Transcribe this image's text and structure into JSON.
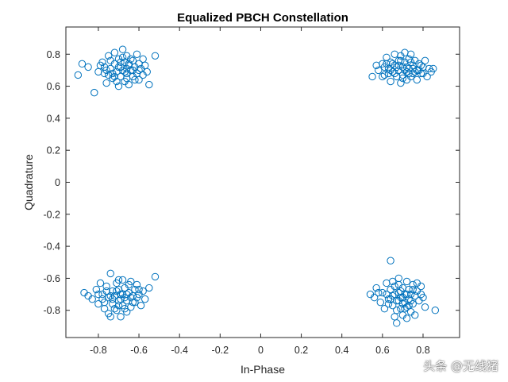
{
  "chart_data": {
    "type": "scatter",
    "title": "Equalized PBCH Constellation",
    "xlabel": "In-Phase",
    "ylabel": "Quadrature",
    "xlim": [
      -0.96,
      0.98
    ],
    "ylim": [
      -0.97,
      0.97
    ],
    "xticks": [
      -0.8,
      -0.6,
      -0.4,
      -0.2,
      0,
      0.2,
      0.4,
      0.6,
      0.8
    ],
    "xtick_labels": [
      "-0.8",
      "-0.6",
      "-0.4",
      "-0.2",
      "0",
      "0.2",
      "0.4",
      "0.6",
      "0.8"
    ],
    "yticks": [
      -0.8,
      -0.6,
      -0.4,
      -0.2,
      0,
      0.2,
      0.4,
      0.6,
      0.8
    ],
    "ytick_labels": [
      "-0.8",
      "-0.6",
      "-0.4",
      "-0.2",
      "0",
      "0.2",
      "0.4",
      "0.6",
      "0.8"
    ],
    "grid": false,
    "marker": "open-circle",
    "marker_color": "#0072BD",
    "series": [
      {
        "points": [
          [
            -0.88,
            0.74
          ],
          [
            -0.9,
            0.67
          ],
          [
            -0.85,
            0.72
          ],
          [
            -0.82,
            0.56
          ],
          [
            -0.8,
            0.69
          ],
          [
            -0.78,
            0.75
          ],
          [
            -0.77,
            0.68
          ],
          [
            -0.76,
            0.62
          ],
          [
            -0.75,
            0.79
          ],
          [
            -0.74,
            0.71
          ],
          [
            -0.73,
            0.65
          ],
          [
            -0.72,
            0.81
          ],
          [
            -0.72,
            0.74
          ],
          [
            -0.71,
            0.69
          ],
          [
            -0.7,
            0.6
          ],
          [
            -0.7,
            0.77
          ],
          [
            -0.69,
            0.72
          ],
          [
            -0.69,
            0.66
          ],
          [
            -0.68,
            0.83
          ],
          [
            -0.68,
            0.7
          ],
          [
            -0.67,
            0.75
          ],
          [
            -0.67,
            0.63
          ],
          [
            -0.66,
            0.68
          ],
          [
            -0.66,
            0.79
          ],
          [
            -0.65,
            0.73
          ],
          [
            -0.65,
            0.61
          ],
          [
            -0.64,
            0.7
          ],
          [
            -0.63,
            0.76
          ],
          [
            -0.63,
            0.66
          ],
          [
            -0.62,
            0.72
          ],
          [
            -0.61,
            0.8
          ],
          [
            -0.61,
            0.68
          ],
          [
            -0.6,
            0.74
          ],
          [
            -0.6,
            0.64
          ],
          [
            -0.59,
            0.71
          ],
          [
            -0.58,
            0.77
          ],
          [
            -0.58,
            0.67
          ],
          [
            -0.57,
            0.73
          ],
          [
            -0.56,
            0.69
          ],
          [
            -0.55,
            0.61
          ],
          [
            -0.52,
            0.79
          ],
          [
            -0.79,
            0.73
          ],
          [
            -0.76,
            0.7
          ],
          [
            -0.74,
            0.76
          ],
          [
            -0.71,
            0.63
          ],
          [
            -0.68,
            0.78
          ],
          [
            -0.66,
            0.71
          ],
          [
            -0.64,
            0.77
          ],
          [
            -0.62,
            0.64
          ],
          [
            -0.7,
            0.72
          ],
          [
            -0.73,
            0.68
          ],
          [
            -0.67,
            0.69
          ],
          [
            -0.65,
            0.74
          ],
          [
            -0.69,
            0.75
          ],
          [
            -0.63,
            0.7
          ],
          [
            -0.77,
            0.72
          ],
          [
            -0.6,
            0.7
          ],
          [
            -0.72,
            0.66
          ],
          [
            -0.66,
            0.65
          ],
          [
            -0.75,
            0.67
          ]
        ]
      },
      {
        "points": [
          [
            0.55,
            0.66
          ],
          [
            0.58,
            0.7
          ],
          [
            0.6,
            0.74
          ],
          [
            0.61,
            0.67
          ],
          [
            0.62,
            0.78
          ],
          [
            0.63,
            0.71
          ],
          [
            0.64,
            0.63
          ],
          [
            0.64,
            0.75
          ],
          [
            0.65,
            0.69
          ],
          [
            0.66,
            0.8
          ],
          [
            0.66,
            0.73
          ],
          [
            0.67,
            0.66
          ],
          [
            0.68,
            0.76
          ],
          [
            0.68,
            0.7
          ],
          [
            0.69,
            0.62
          ],
          [
            0.69,
            0.79
          ],
          [
            0.7,
            0.72
          ],
          [
            0.7,
            0.67
          ],
          [
            0.71,
            0.81
          ],
          [
            0.71,
            0.75
          ],
          [
            0.72,
            0.69
          ],
          [
            0.72,
            0.64
          ],
          [
            0.73,
            0.77
          ],
          [
            0.73,
            0.71
          ],
          [
            0.74,
            0.66
          ],
          [
            0.74,
            0.8
          ],
          [
            0.75,
            0.73
          ],
          [
            0.75,
            0.68
          ],
          [
            0.76,
            0.76
          ],
          [
            0.77,
            0.7
          ],
          [
            0.77,
            0.64
          ],
          [
            0.78,
            0.74
          ],
          [
            0.79,
            0.68
          ],
          [
            0.8,
            0.72
          ],
          [
            0.81,
            0.76
          ],
          [
            0.82,
            0.66
          ],
          [
            0.83,
            0.71
          ],
          [
            0.84,
            0.69
          ],
          [
            0.85,
            0.71
          ],
          [
            0.63,
            0.68
          ],
          [
            0.67,
            0.72
          ],
          [
            0.71,
            0.7
          ],
          [
            0.65,
            0.74
          ],
          [
            0.73,
            0.68
          ],
          [
            0.69,
            0.76
          ],
          [
            0.75,
            0.71
          ],
          [
            0.61,
            0.72
          ],
          [
            0.79,
            0.73
          ],
          [
            0.7,
            0.65
          ],
          [
            0.66,
            0.68
          ],
          [
            0.74,
            0.75
          ],
          [
            0.68,
            0.73
          ],
          [
            0.72,
            0.72
          ],
          [
            0.76,
            0.69
          ],
          [
            0.64,
            0.7
          ],
          [
            0.62,
            0.74
          ],
          [
            0.78,
            0.7
          ],
          [
            0.8,
            0.68
          ],
          [
            0.57,
            0.73
          ],
          [
            0.6,
            0.66
          ]
        ]
      },
      {
        "points": [
          [
            -0.87,
            -0.69
          ],
          [
            -0.85,
            -0.71
          ],
          [
            -0.83,
            -0.73
          ],
          [
            -0.81,
            -0.67
          ],
          [
            -0.8,
            -0.76
          ],
          [
            -0.79,
            -0.63
          ],
          [
            -0.78,
            -0.7
          ],
          [
            -0.77,
            -0.79
          ],
          [
            -0.76,
            -0.65
          ],
          [
            -0.75,
            -0.72
          ],
          [
            -0.75,
            -0.82
          ],
          [
            -0.74,
            -0.57
          ],
          [
            -0.73,
            -0.68
          ],
          [
            -0.73,
            -0.76
          ],
          [
            -0.72,
            -0.71
          ],
          [
            -0.71,
            -0.63
          ],
          [
            -0.71,
            -0.8
          ],
          [
            -0.7,
            -0.74
          ],
          [
            -0.7,
            -0.67
          ],
          [
            -0.69,
            -0.84
          ],
          [
            -0.69,
            -0.7
          ],
          [
            -0.68,
            -0.61
          ],
          [
            -0.68,
            -0.77
          ],
          [
            -0.67,
            -0.72
          ],
          [
            -0.67,
            -0.66
          ],
          [
            -0.66,
            -0.81
          ],
          [
            -0.66,
            -0.74
          ],
          [
            -0.65,
            -0.69
          ],
          [
            -0.64,
            -0.62
          ],
          [
            -0.64,
            -0.78
          ],
          [
            -0.63,
            -0.71
          ],
          [
            -0.62,
            -0.67
          ],
          [
            -0.62,
            -0.75
          ],
          [
            -0.61,
            -0.64
          ],
          [
            -0.6,
            -0.7
          ],
          [
            -0.59,
            -0.77
          ],
          [
            -0.58,
            -0.68
          ],
          [
            -0.57,
            -0.73
          ],
          [
            -0.55,
            -0.66
          ],
          [
            -0.52,
            -0.59
          ],
          [
            -0.77,
            -0.75
          ],
          [
            -0.74,
            -0.71
          ],
          [
            -0.72,
            -0.79
          ],
          [
            -0.69,
            -0.73
          ],
          [
            -0.67,
            -0.79
          ],
          [
            -0.65,
            -0.64
          ],
          [
            -0.63,
            -0.75
          ],
          [
            -0.71,
            -0.68
          ],
          [
            -0.68,
            -0.7
          ],
          [
            -0.66,
            -0.7
          ],
          [
            -0.7,
            -0.77
          ],
          [
            -0.73,
            -0.73
          ],
          [
            -0.64,
            -0.72
          ],
          [
            -0.61,
            -0.72
          ],
          [
            -0.76,
            -0.68
          ],
          [
            -0.74,
            -0.84
          ],
          [
            -0.7,
            -0.61
          ],
          [
            -0.78,
            -0.73
          ],
          [
            -0.6,
            -0.67
          ],
          [
            -0.8,
            -0.7
          ]
        ]
      },
      {
        "points": [
          [
            0.54,
            -0.7
          ],
          [
            0.56,
            -0.72
          ],
          [
            0.57,
            -0.66
          ],
          [
            0.59,
            -0.75
          ],
          [
            0.6,
            -0.69
          ],
          [
            0.61,
            -0.79
          ],
          [
            0.62,
            -0.63
          ],
          [
            0.63,
            -0.73
          ],
          [
            0.64,
            -0.49
          ],
          [
            0.64,
            -0.67
          ],
          [
            0.65,
            -0.77
          ],
          [
            0.65,
            -0.71
          ],
          [
            0.66,
            -0.84
          ],
          [
            0.66,
            -0.65
          ],
          [
            0.67,
            -0.74
          ],
          [
            0.67,
            -0.88
          ],
          [
            0.68,
            -0.69
          ],
          [
            0.68,
            -0.6
          ],
          [
            0.69,
            -0.79
          ],
          [
            0.69,
            -0.72
          ],
          [
            0.7,
            -0.66
          ],
          [
            0.7,
            -0.83
          ],
          [
            0.71,
            -0.75
          ],
          [
            0.71,
            -0.7
          ],
          [
            0.72,
            -0.62
          ],
          [
            0.72,
            -0.78
          ],
          [
            0.73,
            -0.73
          ],
          [
            0.73,
            -0.67
          ],
          [
            0.74,
            -0.81
          ],
          [
            0.74,
            -0.7
          ],
          [
            0.75,
            -0.64
          ],
          [
            0.75,
            -0.76
          ],
          [
            0.76,
            -0.71
          ],
          [
            0.76,
            -0.83
          ],
          [
            0.77,
            -0.68
          ],
          [
            0.78,
            -0.74
          ],
          [
            0.79,
            -0.65
          ],
          [
            0.8,
            -0.72
          ],
          [
            0.81,
            -0.78
          ],
          [
            0.86,
            -0.8
          ],
          [
            0.63,
            -0.76
          ],
          [
            0.66,
            -0.7
          ],
          [
            0.68,
            -0.74
          ],
          [
            0.7,
            -0.72
          ],
          [
            0.72,
            -0.7
          ],
          [
            0.74,
            -0.74
          ],
          [
            0.69,
            -0.68
          ],
          [
            0.71,
            -0.79
          ],
          [
            0.67,
            -0.8
          ],
          [
            0.73,
            -0.77
          ],
          [
            0.65,
            -0.62
          ],
          [
            0.77,
            -0.63
          ],
          [
            0.79,
            -0.7
          ],
          [
            0.62,
            -0.7
          ],
          [
            0.75,
            -0.67
          ],
          [
            0.7,
            -0.76
          ],
          [
            0.64,
            -0.73
          ],
          [
            0.68,
            -0.64
          ],
          [
            0.72,
            -0.85
          ],
          [
            0.58,
            -0.69
          ]
        ]
      }
    ]
  },
  "watermark": "头条 @无线猪"
}
